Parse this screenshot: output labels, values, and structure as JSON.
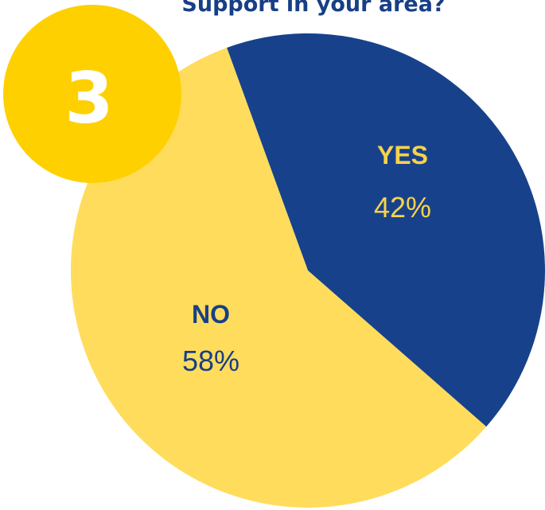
{
  "badge": {
    "number": "3",
    "color": "#ffd000"
  },
  "chart_data": {
    "type": "pie",
    "title": "Support in your area?",
    "slices": [
      {
        "label": "YES",
        "value": 42,
        "value_label": "42%",
        "color": "#17428b",
        "text_color": "#f8d24b",
        "value_text_color": "#f8d24b"
      },
      {
        "label": "NO",
        "value": 58,
        "value_label": "58%",
        "color": "#ffdc5c",
        "text_color": "#173f86",
        "value_text_color": "#173f86"
      }
    ],
    "start_direction": "upper-left",
    "legend": "none"
  }
}
